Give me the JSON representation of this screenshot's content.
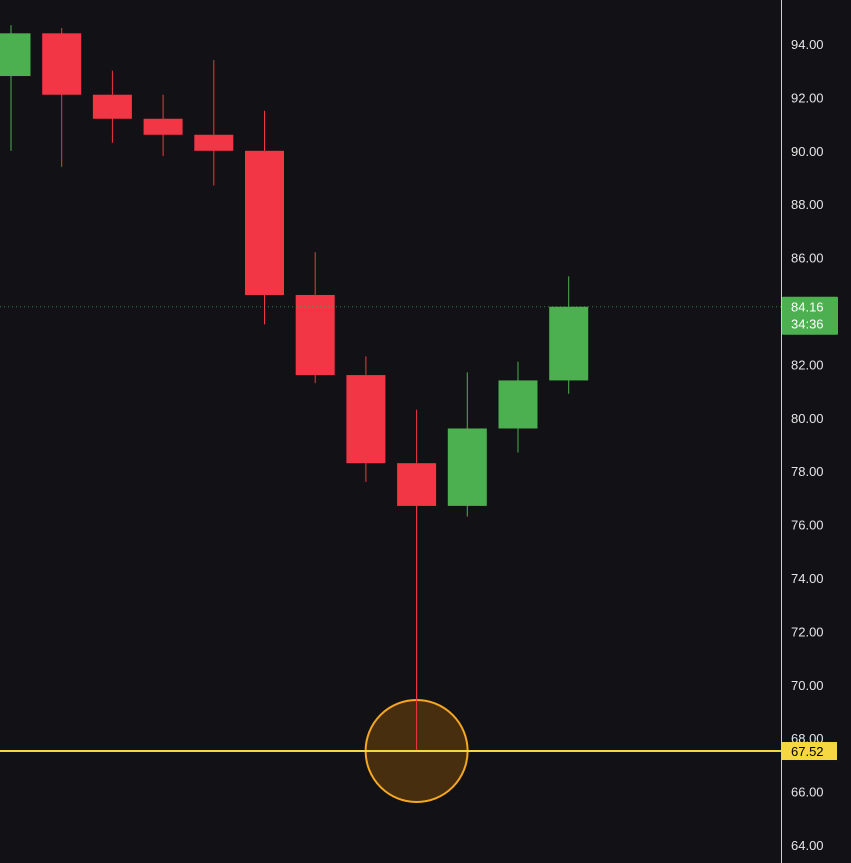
{
  "chart_data": {
    "type": "candlestick",
    "title": "",
    "xlabel": "",
    "ylabel": "",
    "ylim": [
      63.4,
      95.8
    ],
    "y_ticks": [
      "94.00",
      "92.00",
      "90.00",
      "88.00",
      "86.00",
      "82.00",
      "80.00",
      "78.00",
      "76.00",
      "74.00",
      "72.00",
      "70.00",
      "68.00",
      "66.00",
      "64.00"
    ],
    "candles": [
      {
        "open": 92.8,
        "high": 94.7,
        "low": 90.0,
        "close": 94.4
      },
      {
        "open": 94.4,
        "high": 94.6,
        "low": 89.4,
        "close": 92.1
      },
      {
        "open": 92.1,
        "high": 93.0,
        "low": 90.3,
        "close": 91.2
      },
      {
        "open": 91.2,
        "high": 92.1,
        "low": 89.8,
        "close": 90.6
      },
      {
        "open": 90.6,
        "high": 93.4,
        "low": 88.7,
        "close": 90.0
      },
      {
        "open": 90.0,
        "high": 91.5,
        "low": 83.5,
        "close": 84.6
      },
      {
        "open": 84.6,
        "high": 86.2,
        "low": 81.3,
        "close": 81.6
      },
      {
        "open": 81.6,
        "high": 82.3,
        "low": 77.6,
        "close": 78.3
      },
      {
        "open": 78.3,
        "high": 80.3,
        "low": 67.5,
        "close": 76.7
      },
      {
        "open": 76.7,
        "high": 81.7,
        "low": 76.3,
        "close": 79.6
      },
      {
        "open": 79.6,
        "high": 82.1,
        "low": 78.7,
        "close": 81.4
      },
      {
        "open": 81.4,
        "high": 85.3,
        "low": 80.9,
        "close": 84.16
      }
    ],
    "current_price": {
      "value": 84.16,
      "label": "84.16",
      "countdown": "34:36"
    },
    "horizontal_line": {
      "value": 67.52,
      "label": "67.52"
    },
    "highlight": {
      "candle_index": 8,
      "value": 67.52
    },
    "grid": false
  },
  "colors": {
    "background": "#121216",
    "up": "#4caf50",
    "down": "#f23645",
    "axis_line": "#cfcfcf",
    "axis_text": "#e6e6e6",
    "horizontal_line": "#f5d742",
    "price_tag": "#4caf50",
    "highlight_fill": "#4a300f",
    "highlight_stroke": "#f5a623"
  }
}
